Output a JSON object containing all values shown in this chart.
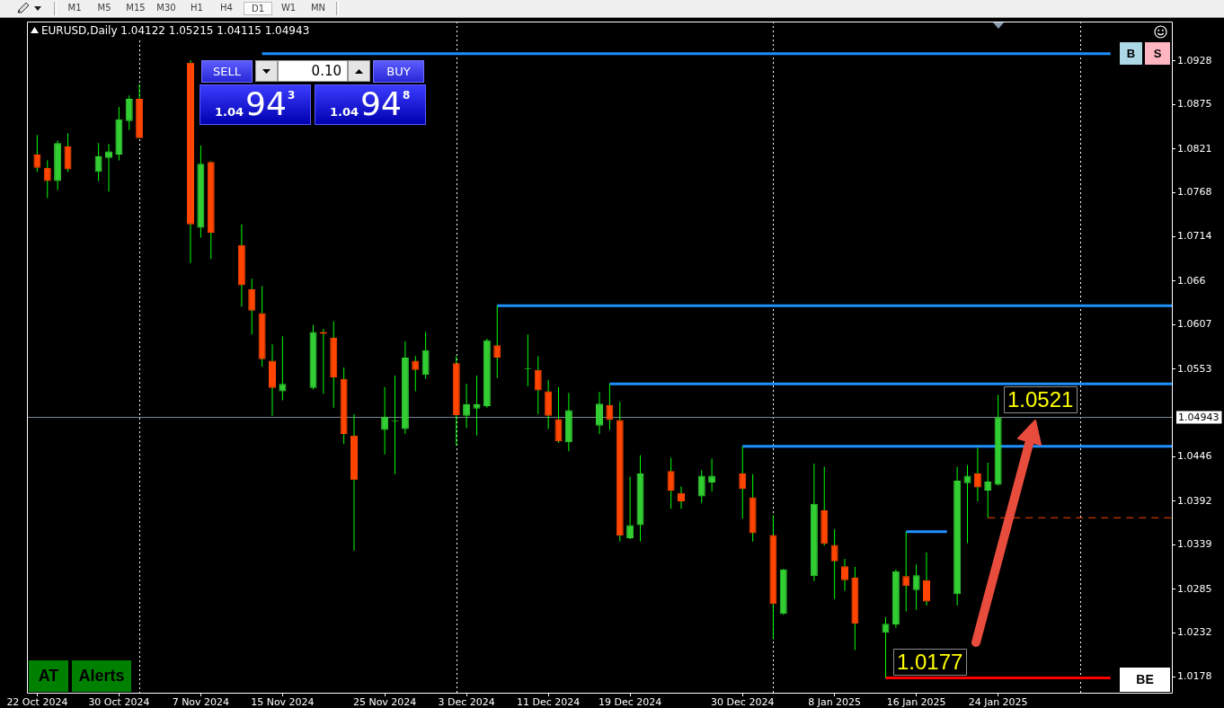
{
  "chart_data": {
    "type": "candlestick",
    "title": "EURUSD,Daily 1.04122 1.05215 1.04115 1.04943",
    "x": [
      "2024-10-22",
      "2024-10-23",
      "2024-10-24",
      "2024-10-25",
      "2024-10-28",
      "2024-10-29",
      "2024-10-30",
      "2024-10-31",
      "2024-11-01",
      "2024-11-06",
      "2024-11-07",
      "2024-11-08",
      "2024-11-11",
      "2024-11-12",
      "2024-11-13",
      "2024-11-14",
      "2024-11-15",
      "2024-11-18",
      "2024-11-19",
      "2024-11-20",
      "2024-11-21",
      "2024-11-22",
      "2024-11-25",
      "2024-11-26",
      "2024-11-27",
      "2024-11-28",
      "2024-11-29",
      "2024-12-02",
      "2024-12-03",
      "2024-12-04",
      "2024-12-05",
      "2024-12-06",
      "2024-12-09",
      "2024-12-10",
      "2024-12-11",
      "2024-12-12",
      "2024-12-13",
      "2024-12-16",
      "2024-12-17",
      "2024-12-18",
      "2024-12-19",
      "2024-12-20",
      "2024-12-23",
      "2024-12-24",
      "2024-12-26",
      "2024-12-27",
      "2024-12-30",
      "2024-12-31",
      "2025-01-02",
      "2025-01-03",
      "2025-01-06",
      "2025-01-07",
      "2025-01-08",
      "2025-01-09",
      "2025-01-10",
      "2025-01-13",
      "2025-01-14",
      "2025-01-15",
      "2025-01-16",
      "2025-01-17",
      "2025-01-20",
      "2025-01-21",
      "2025-01-22",
      "2025-01-23",
      "2025-01-24"
    ],
    "ohlc": [
      [
        1.0814,
        1.0838,
        1.0793,
        1.0798
      ],
      [
        1.0798,
        1.0807,
        1.0761,
        1.0782
      ],
      [
        1.0782,
        1.0831,
        1.0771,
        1.0828
      ],
      [
        1.0824,
        1.084,
        1.0793,
        1.0796
      ],
      [
        1.0793,
        1.0828,
        1.0782,
        1.0812
      ],
      [
        1.081,
        1.0827,
        1.0769,
        1.0818
      ],
      [
        1.0814,
        1.0872,
        1.0807,
        1.0857
      ],
      [
        1.0855,
        1.0886,
        1.0844,
        1.0882
      ],
      [
        1.0882,
        1.09,
        1.0834,
        1.0834
      ],
      [
        1.0926,
        1.0929,
        1.0682,
        1.0729
      ],
      [
        1.0725,
        1.0825,
        1.0713,
        1.0803
      ],
      [
        1.0805,
        1.0806,
        1.0687,
        1.0719
      ],
      [
        1.0704,
        1.0729,
        1.0629,
        1.0655
      ],
      [
        1.065,
        1.0663,
        1.0595,
        1.0624
      ],
      [
        1.0621,
        1.0654,
        1.0556,
        1.0565
      ],
      [
        1.0563,
        1.0583,
        1.0496,
        1.053
      ],
      [
        1.0526,
        1.0593,
        1.0515,
        1.0535
      ],
      [
        1.053,
        1.0607,
        1.0528,
        1.0598
      ],
      [
        1.0598,
        1.0602,
        1.0523,
        1.0596
      ],
      [
        1.0591,
        1.0611,
        1.0506,
        1.0543
      ],
      [
        1.0541,
        1.0555,
        1.0462,
        1.0474
      ],
      [
        1.0472,
        1.0498,
        1.0332,
        1.0418
      ],
      [
        1.0479,
        1.0531,
        1.0449,
        1.0495
      ],
      [
        1.0489,
        1.0545,
        1.0425,
        1.0489
      ],
      [
        1.048,
        1.0587,
        1.0474,
        1.0567
      ],
      [
        1.0563,
        1.0569,
        1.0526,
        1.0552
      ],
      [
        1.0546,
        1.0598,
        1.0541,
        1.0576
      ],
      [
        1.056,
        1.0569,
        1.046,
        1.0497
      ],
      [
        1.0496,
        1.0535,
        1.0481,
        1.051
      ],
      [
        1.0505,
        1.0545,
        1.0472,
        1.051
      ],
      [
        1.0508,
        1.059,
        1.0506,
        1.0588
      ],
      [
        1.0582,
        1.063,
        1.0542,
        1.0567
      ],
      [
        1.0553,
        1.0595,
        1.0532,
        1.0554
      ],
      [
        1.0552,
        1.0569,
        1.0498,
        1.0527
      ],
      [
        1.0526,
        1.054,
        1.048,
        1.0496
      ],
      [
        1.0492,
        1.0531,
        1.0463,
        1.0465
      ],
      [
        1.0464,
        1.0524,
        1.0453,
        1.0503
      ],
      [
        1.0484,
        1.0525,
        1.0474,
        1.0511
      ],
      [
        1.0509,
        1.0535,
        1.0479,
        1.0491
      ],
      [
        1.0491,
        1.0513,
        1.0343,
        1.035
      ],
      [
        1.0347,
        1.0422,
        1.0346,
        1.0363
      ],
      [
        1.0363,
        1.0448,
        1.0343,
        1.0426
      ],
      [
        1.0429,
        1.0445,
        1.0383,
        1.0405
      ],
      [
        1.0402,
        1.041,
        1.0383,
        1.0392
      ],
      [
        1.0398,
        1.043,
        1.039,
        1.0423
      ],
      [
        1.0415,
        1.0444,
        1.0404,
        1.0423
      ],
      [
        1.0426,
        1.0459,
        1.0371,
        1.0407
      ],
      [
        1.0397,
        1.0425,
        1.0343,
        1.0353
      ],
      [
        1.0351,
        1.0375,
        1.0224,
        1.0267
      ],
      [
        1.0255,
        1.031,
        1.0254,
        1.0309
      ],
      [
        1.0301,
        1.0438,
        1.0295,
        1.0389
      ],
      [
        1.0381,
        1.0434,
        1.0338,
        1.034
      ],
      [
        1.0339,
        1.0358,
        1.0273,
        1.0319
      ],
      [
        1.0313,
        1.0322,
        1.0283,
        1.0296
      ],
      [
        1.0299,
        1.0312,
        1.0211,
        1.0243
      ],
      [
        1.0232,
        1.0251,
        1.0177,
        1.0243
      ],
      [
        1.0242,
        1.0309,
        1.0238,
        1.0307
      ],
      [
        1.0301,
        1.0355,
        1.0258,
        1.0289
      ],
      [
        1.0284,
        1.0315,
        1.026,
        1.0302
      ],
      [
        1.0296,
        1.033,
        1.0265,
        1.027
      ],
      [
        1.0279,
        1.0434,
        1.0265,
        1.0417
      ],
      [
        1.0414,
        1.0436,
        1.0341,
        1.0423
      ],
      [
        1.0426,
        1.0457,
        1.0392,
        1.0409
      ],
      [
        1.0405,
        1.0439,
        1.0372,
        1.0416
      ],
      [
        1.04122,
        1.05215,
        1.04115,
        1.04943
      ]
    ],
    "colors": [
      "#ff4500",
      "#ff4500",
      "#32cd32",
      "#ff4500",
      "#32cd32",
      "#32cd32",
      "#32cd32",
      "#32cd32",
      "#ff4500",
      "#ff4500",
      "#32cd32",
      "#ff4500",
      "#ff4500",
      "#ff4500",
      "#ff4500",
      "#ff4500",
      "#32cd32",
      "#32cd32",
      "#ff4500",
      "#ff4500",
      "#ff4500",
      "#ff4500",
      "#32cd32",
      "#32cd32",
      "#32cd32",
      "#ff4500",
      "#32cd32",
      "#ff4500",
      "#32cd32",
      "#32cd32",
      "#32cd32",
      "#ff4500",
      "#32cd32",
      "#ff4500",
      "#ff4500",
      "#ff4500",
      "#32cd32",
      "#32cd32",
      "#ff4500",
      "#ff4500",
      "#32cd32",
      "#32cd32",
      "#ff4500",
      "#ff4500",
      "#32cd32",
      "#32cd32",
      "#ff4500",
      "#ff4500",
      "#ff4500",
      "#32cd32",
      "#32cd32",
      "#ff4500",
      "#ff4500",
      "#ff4500",
      "#ff4500",
      "#32cd32",
      "#32cd32",
      "#ff4500",
      "#32cd32",
      "#ff4500",
      "#32cd32",
      "#32cd32",
      "#ff4500",
      "#32cd32",
      "#32cd32"
    ],
    "color": "#00ff00",
    "series": [
      {
        "type": "line",
        "color": "#1e90ff",
        "x": [
          "2024-11-13",
          "2025-02-04"
        ],
        "values": [
          1.0937,
          1.0937
        ]
      },
      {
        "type": "line",
        "color": "#1e90ff",
        "x": [
          "2024-12-06",
          "2025-02-10"
        ],
        "values": [
          1.063,
          1.063
        ]
      },
      {
        "type": "line",
        "color": "#1e90ff",
        "x": [
          "2024-12-17",
          "2025-02-10"
        ],
        "values": [
          1.0535,
          1.0535
        ]
      },
      {
        "type": "line",
        "color": "#1e90ff",
        "x": [
          "2024-12-30",
          "2025-02-10"
        ],
        "values": [
          1.0459,
          1.0459
        ]
      },
      {
        "type": "line",
        "color": "#1e90ff",
        "x": [
          "2025-01-15",
          "2025-01-19"
        ],
        "values": [
          1.0355,
          1.0355
        ]
      },
      {
        "type": "line",
        "color": "#ff4500",
        "line_style": "dashed",
        "x": [
          "2025-01-23",
          "2025-02-10"
        ],
        "values": [
          1.0372,
          1.0372
        ]
      },
      {
        "type": "line",
        "color": "#ff0000",
        "x": [
          "2025-01-13",
          "2025-02-04"
        ],
        "values": [
          1.0177,
          1.0177
        ]
      }
    ],
    "xlim": [
      "2024-10-21",
      "2025-02-10"
    ],
    "xticks": [
      {
        "value": "2024-10-22",
        "label": "22 Oct 2024"
      },
      {
        "value": "2024-10-30",
        "label": "30 Oct 2024"
      },
      {
        "value": "2024-11-07",
        "label": "7 Nov 2024"
      },
      {
        "value": "2024-11-15",
        "label": "15 Nov 2024"
      },
      {
        "value": "2024-11-25",
        "label": "25 Nov 2024"
      },
      {
        "value": "2024-12-03",
        "label": "3 Dec 2024"
      },
      {
        "value": "2024-12-11",
        "label": "11 Dec 2024"
      },
      {
        "value": "2024-12-19",
        "label": "19 Dec 2024"
      },
      {
        "value": "2024-12-30",
        "label": "30 Dec 2024"
      },
      {
        "value": "2025-01-08",
        "label": "8 Jan 2025"
      },
      {
        "value": "2025-01-16",
        "label": "16 Jan 2025"
      },
      {
        "value": "2025-01-24",
        "label": "24 Jan 2025"
      }
    ],
    "ylim": [
      1.0159,
      1.0976
    ],
    "yticks": [
      1.0178,
      1.0232,
      1.0285,
      1.0339,
      1.0392,
      1.0446,
      1.0553,
      1.0607,
      1.066,
      1.0714,
      1.0768,
      1.0821,
      1.0875,
      1.0928
    ],
    "ref_lines": [
      {
        "axis": "x",
        "value": "2024-11-01",
        "color": "#ffffff",
        "line_style": "dotted"
      },
      {
        "axis": "x",
        "value": "2024-12-02",
        "color": "#ffffff",
        "line_style": "dotted"
      },
      {
        "axis": "x",
        "value": "2025-01-02",
        "color": "#ffffff",
        "line_style": "dotted"
      },
      {
        "axis": "x",
        "value": "2025-02-01",
        "color": "#ffffff",
        "line_style": "dotted"
      },
      {
        "axis": "y",
        "value": 1.04943,
        "label": "1.04943",
        "color": "#778899"
      }
    ],
    "annotations": [
      {
        "text": "1.0521",
        "x": "2025-01-24",
        "y": 1.05215
      },
      {
        "text": "1.0177",
        "x": "2025-01-13",
        "y": 1.0177
      },
      "M1",
      "M5",
      "M15",
      "M30",
      "H1",
      "H4",
      "D1",
      "W1",
      "MN",
      "SELL",
      "0.10",
      "BUY",
      "1.04",
      "94",
      "3",
      "1.04",
      "94",
      "8",
      "B",
      "S",
      "BE",
      "AT",
      "Alerts"
    ]
  }
}
